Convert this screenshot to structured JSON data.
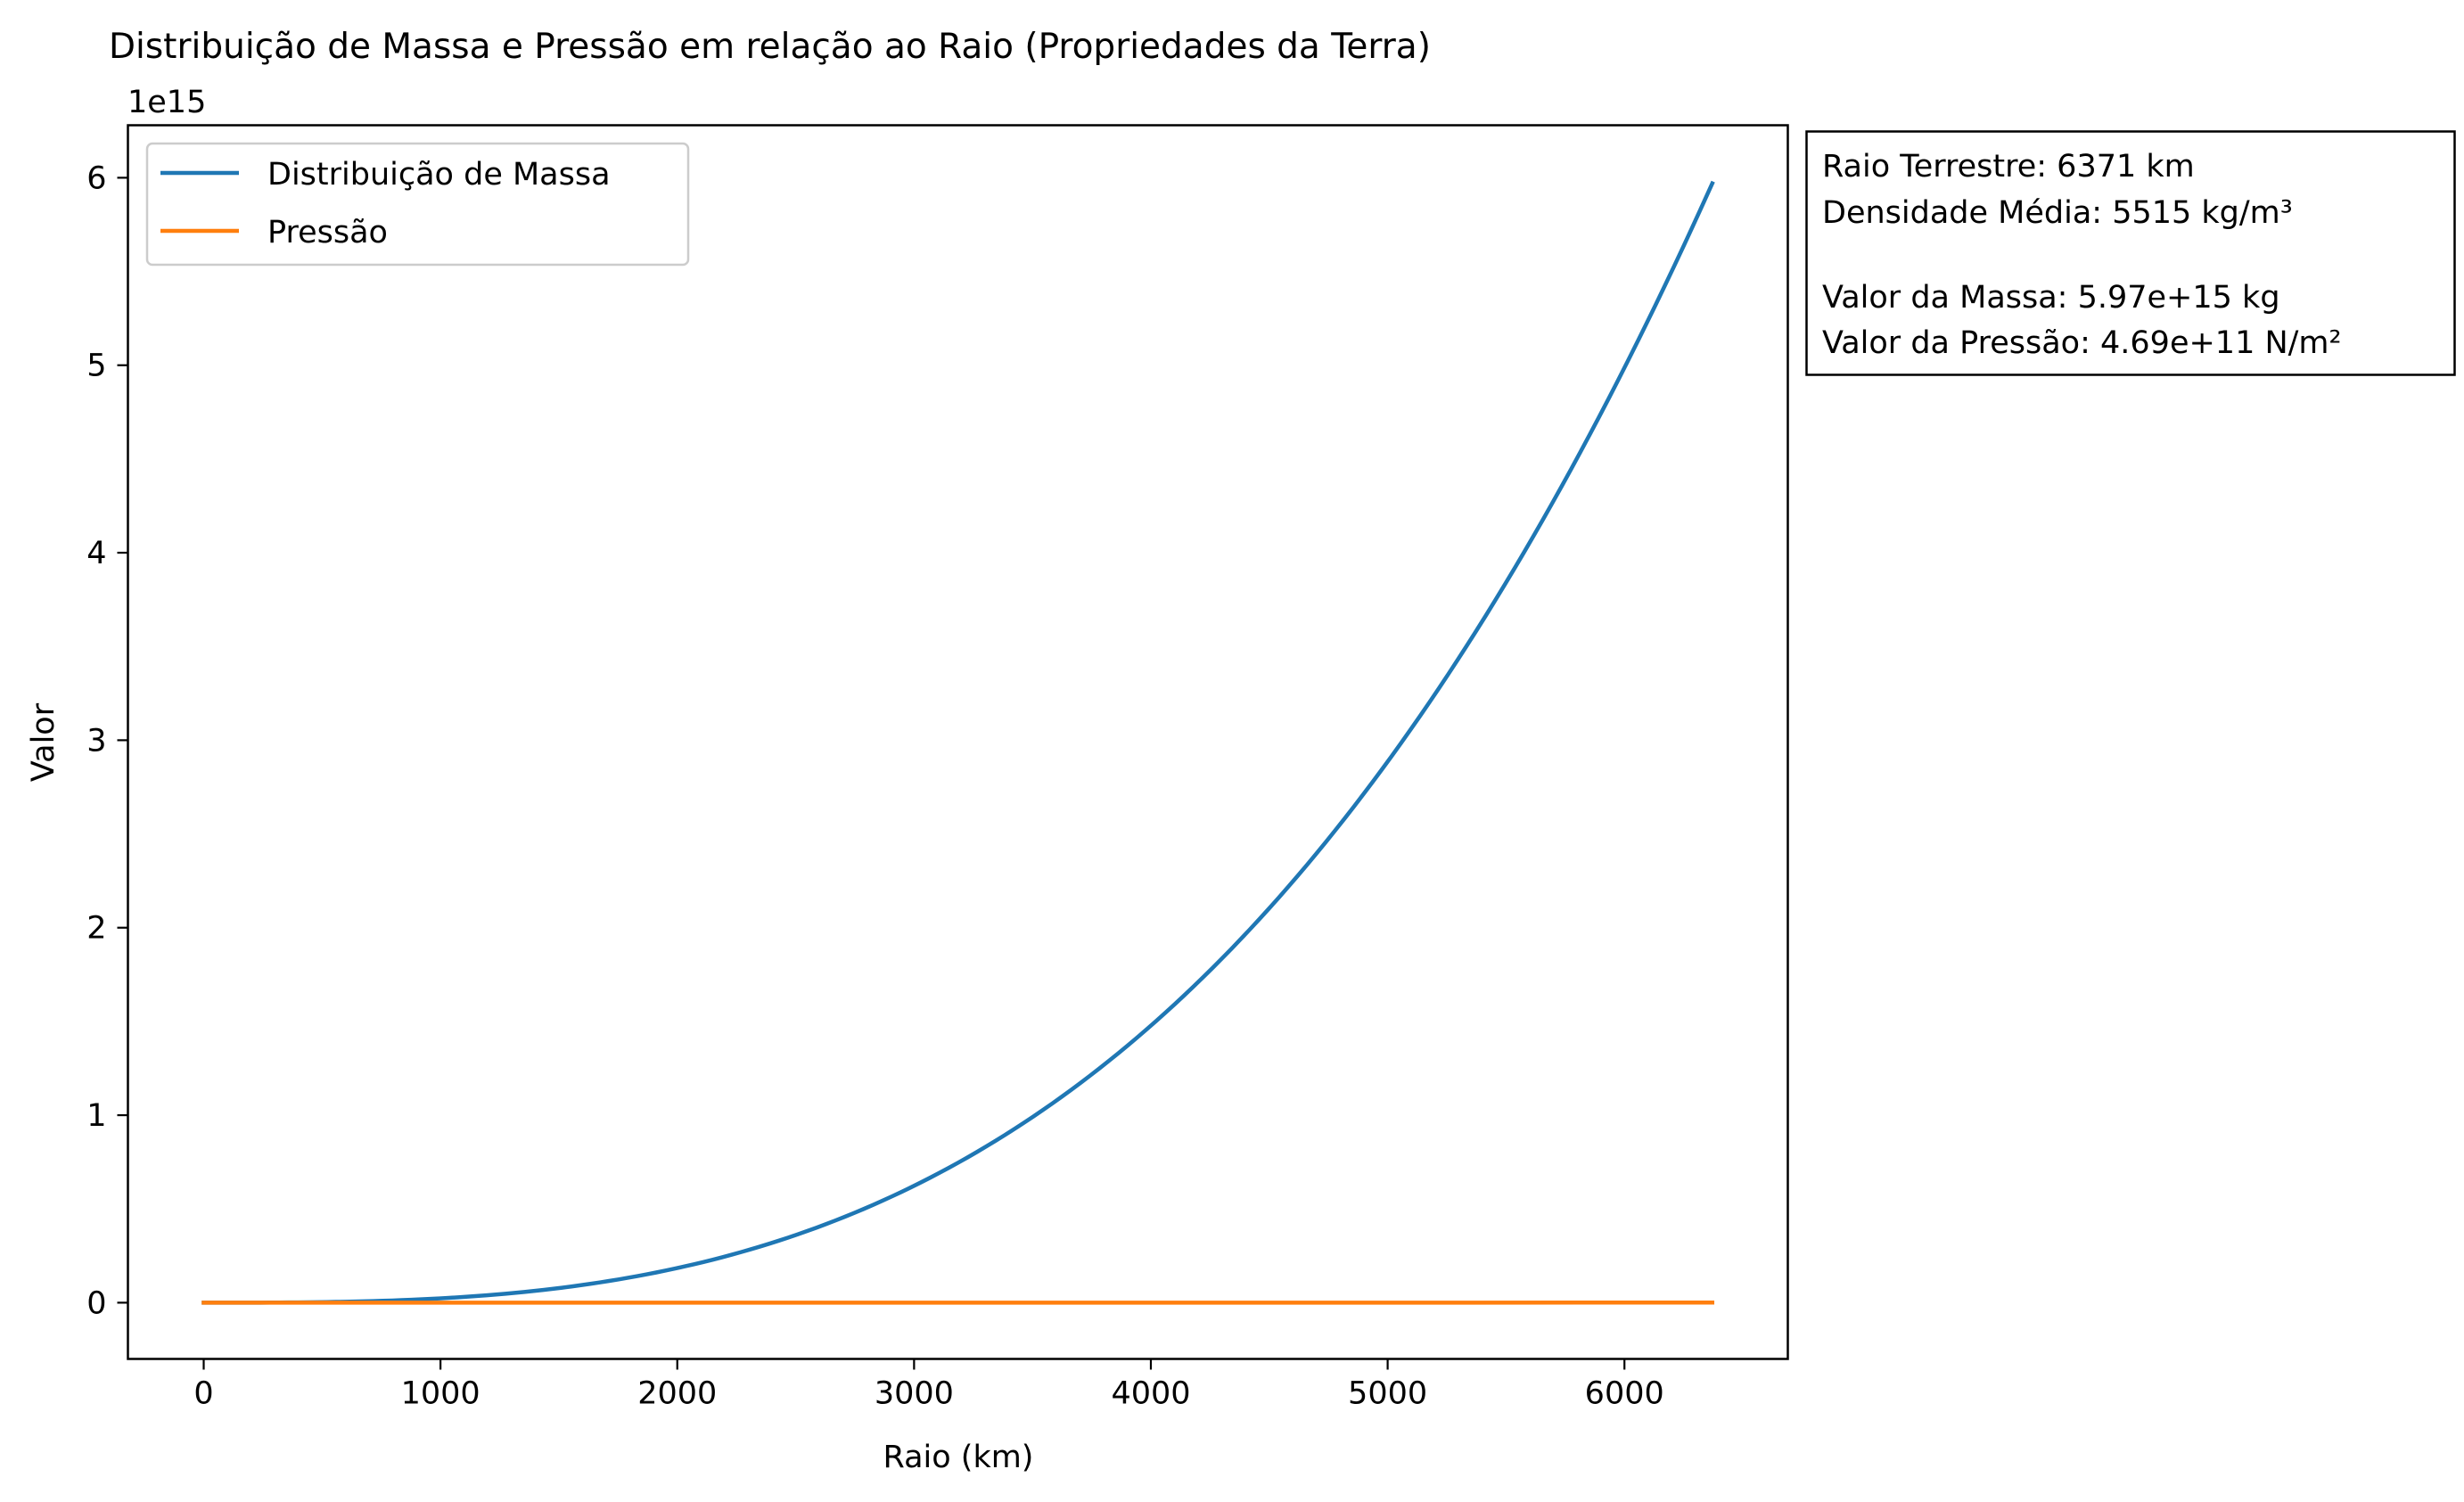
{
  "chart_data": {
    "type": "line",
    "title": "Distribuição de Massa e Pressão em relação ao Raio (Propriedades da Terra)",
    "xlabel": "Raio (km)",
    "ylabel": "Valor",
    "y_offset_label": "1e15",
    "xlim": [
      -320,
      6690
    ],
    "ylim": [
      -0.3,
      6.28
    ],
    "y_scale_factor": 1000000000000000.0,
    "x_ticks": [
      0,
      1000,
      2000,
      3000,
      4000,
      5000,
      6000
    ],
    "y_ticks": [
      0,
      1,
      2,
      3,
      4,
      5,
      6
    ],
    "grid": false,
    "legend_position": "top-left",
    "series": [
      {
        "name": "Distribuição de Massa",
        "color": "#1f77b4",
        "formula": "cubic",
        "x_start": 0,
        "x_end": 6371,
        "y_end": 5.97,
        "x": [
          0,
          500,
          1000,
          1500,
          2000,
          2500,
          3000,
          3500,
          4000,
          4500,
          5000,
          5500,
          6000,
          6371
        ],
        "y": [
          0,
          0.0029,
          0.0231,
          0.0779,
          0.1847,
          0.3607,
          0.6234,
          0.9899,
          1.4776,
          2.1038,
          2.8858,
          3.841,
          4.9866,
          5.97
        ]
      },
      {
        "name": "Pressão",
        "color": "#ff7f0e",
        "x": [
          0,
          6371
        ],
        "y": [
          0,
          0.000469
        ]
      }
    ]
  },
  "info_box": {
    "line1": "Raio Terrestre: 6371 km",
    "line2": "Densidade Média: 5515 kg/m³",
    "line3": "Valor da Massa: 5.97e+15 kg",
    "line4": "Valor da Pressão: 4.69e+11 N/m²"
  }
}
